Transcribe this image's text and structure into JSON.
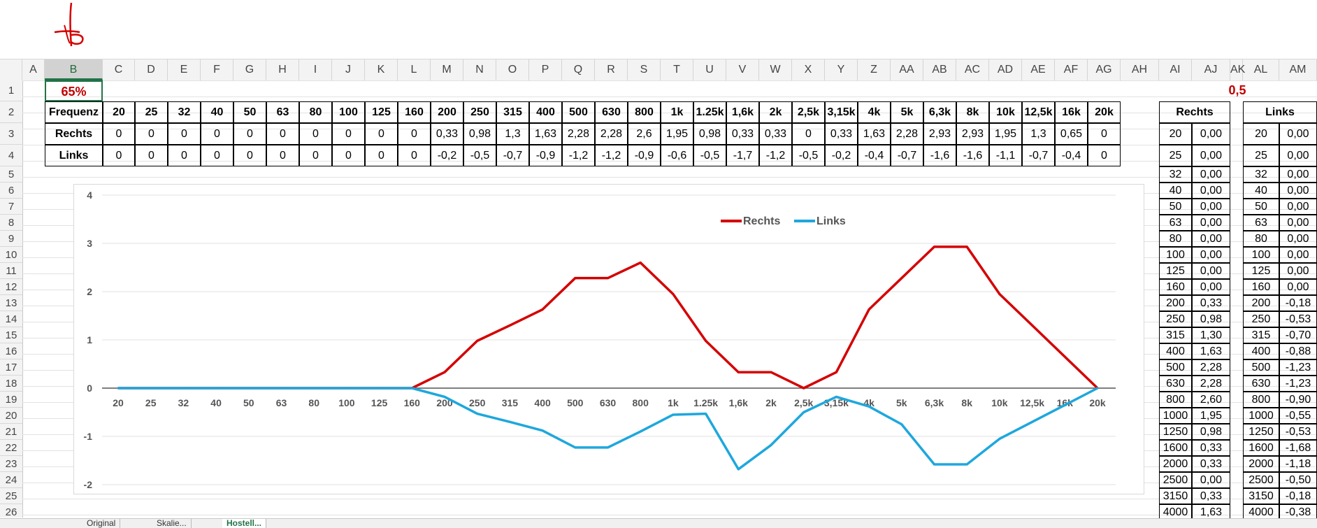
{
  "columns": [
    "A",
    "B",
    "C",
    "D",
    "E",
    "F",
    "G",
    "H",
    "I",
    "J",
    "K",
    "L",
    "M",
    "N",
    "O",
    "P",
    "Q",
    "R",
    "S",
    "T",
    "U",
    "V",
    "W",
    "X",
    "Y",
    "Z",
    "AA",
    "AB",
    "AC",
    "AD",
    "AE",
    "AF",
    "AG",
    "AH",
    "AI",
    "AJ",
    "AK",
    "AL",
    "AM"
  ],
  "rows": [
    "1",
    "2",
    "3",
    "4",
    "5",
    "6",
    "7",
    "8",
    "9",
    "10",
    "11",
    "12",
    "13",
    "14",
    "15",
    "16",
    "17",
    "18",
    "19",
    "20",
    "21",
    "22",
    "23",
    "24",
    "25",
    "26"
  ],
  "b1_value": "65%",
  "ak1_value": "0,5",
  "table": {
    "row_labels": [
      "Frequenz",
      "Rechts",
      "Links"
    ],
    "frequencies": [
      "20",
      "25",
      "32",
      "40",
      "50",
      "63",
      "80",
      "100",
      "125",
      "160",
      "200",
      "250",
      "315",
      "400",
      "500",
      "630",
      "800",
      "1k",
      "1.25k",
      "1,6k",
      "2k",
      "2,5k",
      "3,15k",
      "4k",
      "5k",
      "6,3k",
      "8k",
      "10k",
      "12,5k",
      "16k",
      "20k"
    ],
    "rechts": [
      "0",
      "0",
      "0",
      "0",
      "0",
      "0",
      "0",
      "0",
      "0",
      "0",
      "0,33",
      "0,98",
      "1,3",
      "1,63",
      "2,28",
      "2,28",
      "2,6",
      "1,95",
      "0,98",
      "0,33",
      "0,33",
      "0",
      "0,33",
      "1,63",
      "2,28",
      "2,93",
      "2,93",
      "1,95",
      "1,3",
      "0,65",
      "0"
    ],
    "links": [
      "0",
      "0",
      "0",
      "0",
      "0",
      "0",
      "0",
      "0",
      "0",
      "0",
      "-0,2",
      "-0,5",
      "-0,7",
      "-0,9",
      "-1,2",
      "-1,2",
      "-0,9",
      "-0,6",
      "-0,5",
      "-1,7",
      "-1,2",
      "-0,5",
      "-0,2",
      "-0,4",
      "-0,7",
      "-1,6",
      "-1,6",
      "-1,1",
      "-0,7",
      "-0,4",
      "0"
    ]
  },
  "side_right": {
    "header": "Rechts",
    "freqs": [
      "20",
      "25",
      "32",
      "40",
      "50",
      "63",
      "80",
      "100",
      "125",
      "160",
      "200",
      "250",
      "315",
      "400",
      "500",
      "630",
      "800",
      "1000",
      "1250",
      "1600",
      "2000",
      "2500",
      "3150",
      "4000"
    ],
    "values": [
      "0,00",
      "0,00",
      "0,00",
      "0,00",
      "0,00",
      "0,00",
      "0,00",
      "0,00",
      "0,00",
      "0,00",
      "0,33",
      "0,98",
      "1,30",
      "1,63",
      "2,28",
      "2,28",
      "2,60",
      "1,95",
      "0,98",
      "0,33",
      "0,33",
      "0,00",
      "0,33",
      "1,63"
    ]
  },
  "side_left": {
    "header": "Links",
    "freqs": [
      "20",
      "25",
      "32",
      "40",
      "50",
      "63",
      "80",
      "100",
      "125",
      "160",
      "200",
      "250",
      "315",
      "400",
      "500",
      "630",
      "800",
      "1000",
      "1250",
      "1600",
      "2000",
      "2500",
      "3150",
      "4000"
    ],
    "values": [
      "0,00",
      "0,00",
      "0,00",
      "0,00",
      "0,00",
      "0,00",
      "0,00",
      "0,00",
      "0,00",
      "0,00",
      "-0,18",
      "-0,53",
      "-0,70",
      "-0,88",
      "-1,23",
      "-1,23",
      "-0,90",
      "-0,55",
      "-0,53",
      "-1,68",
      "-1,18",
      "-0,50",
      "-0,18",
      "-0,38"
    ]
  },
  "chart_data": {
    "type": "line",
    "categories": [
      "20",
      "25",
      "32",
      "40",
      "50",
      "63",
      "80",
      "100",
      "125",
      "160",
      "200",
      "250",
      "315",
      "400",
      "500",
      "630",
      "800",
      "1k",
      "1.25k",
      "1,6k",
      "2k",
      "2,5k",
      "3,15k",
      "4k",
      "5k",
      "6,3k",
      "8k",
      "10k",
      "12,5k",
      "16k",
      "20k"
    ],
    "series": [
      {
        "name": "Rechts",
        "color": "#d40000",
        "values": [
          0,
          0,
          0,
          0,
          0,
          0,
          0,
          0,
          0,
          0,
          0.33,
          0.98,
          1.3,
          1.63,
          2.28,
          2.28,
          2.6,
          1.95,
          0.98,
          0.33,
          0.33,
          0,
          0.33,
          1.63,
          2.28,
          2.93,
          2.93,
          1.95,
          1.3,
          0.65,
          0
        ]
      },
      {
        "name": "Links",
        "color": "#1ea7dd",
        "values": [
          0,
          0,
          0,
          0,
          0,
          0,
          0,
          0,
          0,
          0,
          -0.18,
          -0.53,
          -0.7,
          -0.88,
          -1.23,
          -1.23,
          -0.9,
          -0.55,
          -0.53,
          -1.68,
          -1.18,
          -0.5,
          -0.18,
          -0.38,
          -0.75,
          -1.58,
          -1.58,
          -1.05,
          -0.7,
          -0.35,
          0
        ]
      }
    ],
    "y_ticks": [
      "4",
      "3",
      "2",
      "1",
      "0",
      "-1",
      "-2"
    ],
    "ylim": [
      -2,
      4
    ],
    "grid": true,
    "legend": "top-right"
  },
  "tabs": [
    "Original",
    "Skalie...",
    "Hostell..."
  ]
}
